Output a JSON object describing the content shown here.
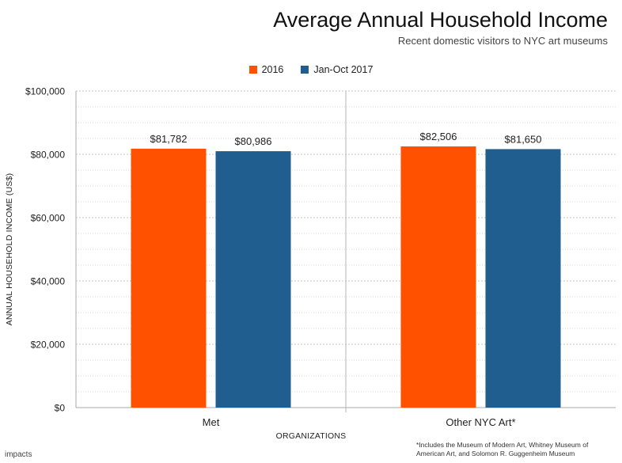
{
  "chart_data": {
    "type": "bar",
    "title": "Average Annual Household Income",
    "subtitle": "Recent domestic visitors to NYC art museums",
    "xlabel": "ORGANIZATIONS",
    "ylabel": "ANNUAL HOUSEHOLD INCOME (US$)",
    "categories": [
      "Met",
      "Other NYC Art*"
    ],
    "series": [
      {
        "name": "2016",
        "color": "#FF5100",
        "values": [
          81782,
          82506
        ],
        "labels": [
          "$81,782",
          "$82,506"
        ]
      },
      {
        "name": "Jan-Oct 2017",
        "color": "#1F5E8E",
        "values": [
          80986,
          81650
        ],
        "labels": [
          "$80,986",
          "$81,650"
        ]
      }
    ],
    "ylim": [
      0,
      100000
    ],
    "yticks": [
      0,
      20000,
      40000,
      60000,
      80000,
      100000
    ],
    "ytick_labels": [
      "$0",
      "$20,000",
      "$40,000",
      "$60,000",
      "$80,000",
      "$100,000"
    ],
    "grid": true,
    "legend_position": "top-center"
  },
  "footnote": "*Includes the Museum of Modern Art, Whitney Museum of American Art, and Solomon R. Guggenheim Museum",
  "brand": "impacts"
}
